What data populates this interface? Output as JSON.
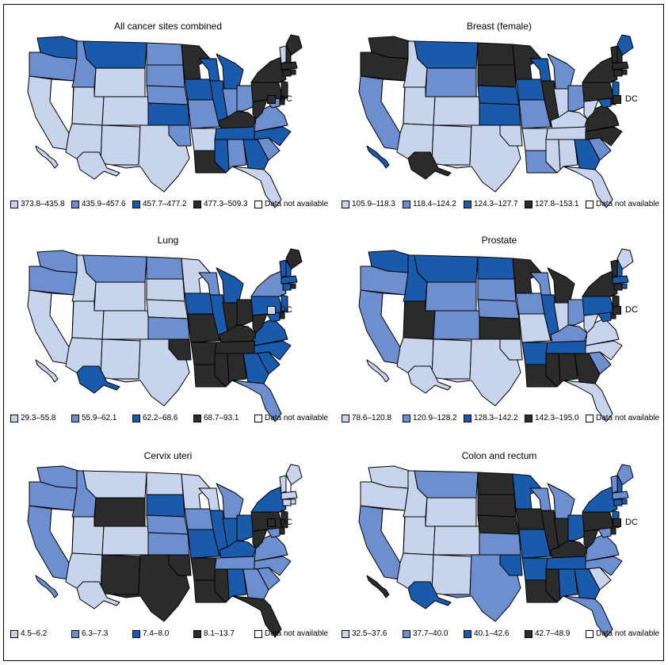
{
  "palette": {
    "c1": "#c7d4ec",
    "c2": "#6e8fcf",
    "c3": "#1a5aab",
    "c4": "#2b2b2b",
    "na": "#ffffff"
  },
  "dc_label": "DC",
  "panels": [
    {
      "title": "All cancer sites combined",
      "legend": [
        "373.8–435.8",
        "435.9–457.6",
        "457.7–477.2",
        "477.3–509.3",
        "Data not available"
      ],
      "dc": 4,
      "states": {
        "WA": 3,
        "OR": 2,
        "CA": 1,
        "NV": 0,
        "ID": 2,
        "MT": 3,
        "WY": 1,
        "UT": 1,
        "CO": 1,
        "AZ": 1,
        "NM": 1,
        "TX": 1,
        "ND": 2,
        "SD": 2,
        "NE": 2,
        "KS": 3,
        "OK": 2,
        "MN": 4,
        "IA": 3,
        "MO": 2,
        "AR": 1,
        "LA": 4,
        "WI": 3,
        "IL": 3,
        "MI": 3,
        "IN": 2,
        "OH": 2,
        "KY": 4,
        "TN": 3,
        "MS": 3,
        "AL": 2,
        "GA": 3,
        "FL": 1,
        "SC": 2,
        "NC": 3,
        "VA": 2,
        "WV": 4,
        "PA": 4,
        "NY": 4,
        "ME": 4,
        "VT": 1,
        "NH": 4,
        "MA": 4,
        "CT": 4,
        "RI": 4,
        "NJ": 4,
        "DE": 4,
        "MD": 2,
        "AK": 1,
        "HI": 1
      }
    },
    {
      "title": "Breast (female)",
      "legend": [
        "105.9–118.3",
        "118.4–124.2",
        "124.3–127.7",
        "127.8–153.1",
        "Data not available"
      ],
      "dc": 4,
      "states": {
        "WA": 4,
        "OR": 4,
        "CA": 2,
        "NV": 0,
        "ID": 1,
        "MT": 3,
        "WY": 2,
        "UT": 1,
        "CO": 1,
        "AZ": 1,
        "NM": 1,
        "TX": 1,
        "ND": 4,
        "SD": 4,
        "NE": 3,
        "KS": 3,
        "OK": 1,
        "MN": 4,
        "IA": 3,
        "MO": 2,
        "AR": 1,
        "LA": 2,
        "WI": 3,
        "IL": 4,
        "MI": 2,
        "IN": 1,
        "OH": 2,
        "KY": 1,
        "TN": 1,
        "MS": 1,
        "AL": 1,
        "GA": 3,
        "FL": 1,
        "SC": 2,
        "NC": 4,
        "VA": 4,
        "WV": 1,
        "PA": 4,
        "NY": 4,
        "ME": 3,
        "VT": 4,
        "NH": 4,
        "MA": 4,
        "CT": 4,
        "RI": 4,
        "NJ": 3,
        "DE": 4,
        "MD": 3,
        "AK": 4,
        "HI": 3
      }
    },
    {
      "title": "Lung",
      "legend": [
        "29.3–55.8",
        "55.9–62.1",
        "62.2–68.6",
        "68.7–93.1",
        "Data not available"
      ],
      "dc": 1,
      "states": {
        "WA": 2,
        "OR": 2,
        "CA": 1,
        "NV": 0,
        "ID": 1,
        "MT": 2,
        "WY": 1,
        "UT": 1,
        "CO": 1,
        "AZ": 1,
        "NM": 1,
        "TX": 1,
        "ND": 2,
        "SD": 1,
        "NE": 1,
        "KS": 2,
        "OK": 4,
        "MN": 1,
        "IA": 3,
        "MO": 4,
        "AR": 4,
        "LA": 4,
        "WI": 2,
        "IL": 3,
        "MI": 3,
        "IN": 4,
        "OH": 4,
        "KY": 4,
        "TN": 4,
        "MS": 4,
        "AL": 4,
        "GA": 3,
        "FL": 2,
        "SC": 3,
        "NC": 3,
        "VA": 3,
        "WV": 4,
        "PA": 3,
        "NY": 2,
        "ME": 4,
        "VT": 3,
        "NH": 3,
        "MA": 3,
        "CT": 3,
        "RI": 4,
        "NJ": 3,
        "DE": 4,
        "MD": 3,
        "AK": 3,
        "HI": 1
      }
    },
    {
      "title": "Prostate",
      "legend": [
        "78.6–120.8",
        "120.9–128.2",
        "128.3–142.2",
        "142.3–195.0",
        "Data not available"
      ],
      "dc": 4,
      "states": {
        "WA": 3,
        "OR": 2,
        "CA": 2,
        "NV": 0,
        "ID": 3,
        "MT": 3,
        "WY": 2,
        "UT": 4,
        "CO": 2,
        "AZ": 1,
        "NM": 1,
        "TX": 1,
        "ND": 3,
        "SD": 2,
        "NE": 2,
        "KS": 4,
        "OK": 1,
        "MN": 4,
        "IA": 2,
        "MO": 1,
        "AR": 3,
        "LA": 4,
        "WI": 2,
        "IL": 3,
        "MI": 4,
        "IN": 1,
        "OH": 2,
        "KY": 2,
        "TN": 3,
        "MS": 4,
        "AL": 4,
        "GA": 4,
        "FL": 1,
        "SC": 2,
        "NC": 1,
        "VA": 1,
        "WV": 1,
        "PA": 3,
        "NY": 4,
        "ME": 1,
        "VT": 4,
        "NH": 3,
        "MA": 3,
        "CT": 4,
        "RI": 3,
        "NJ": 4,
        "DE": 4,
        "MD": 3,
        "AK": 1,
        "HI": 1
      }
    },
    {
      "title": "Cervix uteri",
      "legend": [
        "4.5–6.2",
        "6.3–7.3",
        "7.4–8.0",
        "8.1–13.7",
        "Data not available"
      ],
      "dc": 4,
      "states": {
        "WA": 2,
        "OR": 2,
        "CA": 2,
        "NV": 0,
        "ID": 2,
        "MT": 1,
        "WY": 4,
        "UT": 1,
        "CO": 1,
        "AZ": 1,
        "NM": 4,
        "TX": 4,
        "ND": 1,
        "SD": 3,
        "NE": 2,
        "KS": 2,
        "OK": 4,
        "MN": 1,
        "IA": 2,
        "MO": 3,
        "AR": 4,
        "LA": 4,
        "WI": 1,
        "IL": 3,
        "MI": 2,
        "IN": 3,
        "OH": 3,
        "KY": 3,
        "TN": 2,
        "MS": 4,
        "AL": 3,
        "GA": 2,
        "FL": 4,
        "SC": 2,
        "NC": 2,
        "VA": 2,
        "WV": 4,
        "PA": 4,
        "NY": 3,
        "ME": 1,
        "VT": 1,
        "NH": 0,
        "MA": 1,
        "CT": 1,
        "RI": 1,
        "NJ": 4,
        "DE": 4,
        "MD": 2,
        "AK": 1,
        "HI": 2
      }
    },
    {
      "title": "Colon and rectum",
      "legend": [
        "32.5–37.6",
        "37.7–40.0",
        "40.1–42.6",
        "42.7–48.9",
        "Data not available"
      ],
      "dc": 4,
      "states": {
        "WA": 1,
        "OR": 1,
        "CA": 2,
        "NV": 0,
        "ID": 1,
        "MT": 2,
        "WY": 1,
        "UT": 1,
        "CO": 1,
        "AZ": 1,
        "NM": 1,
        "TX": 2,
        "ND": 4,
        "SD": 4,
        "NE": 4,
        "KS": 2,
        "OK": 3,
        "MN": 3,
        "IA": 4,
        "MO": 3,
        "AR": 3,
        "LA": 4,
        "WI": 2,
        "IL": 4,
        "MI": 2,
        "IN": 4,
        "OH": 3,
        "KY": 4,
        "TN": 3,
        "MS": 4,
        "AL": 3,
        "GA": 3,
        "FL": 2,
        "SC": 1,
        "NC": 2,
        "VA": 2,
        "WV": 4,
        "PA": 4,
        "NY": 3,
        "ME": 2,
        "VT": 2,
        "NH": 3,
        "MA": 2,
        "CT": 3,
        "RI": 3,
        "NJ": 3,
        "DE": 4,
        "MD": 2,
        "AK": 3,
        "HI": 4
      }
    }
  ]
}
